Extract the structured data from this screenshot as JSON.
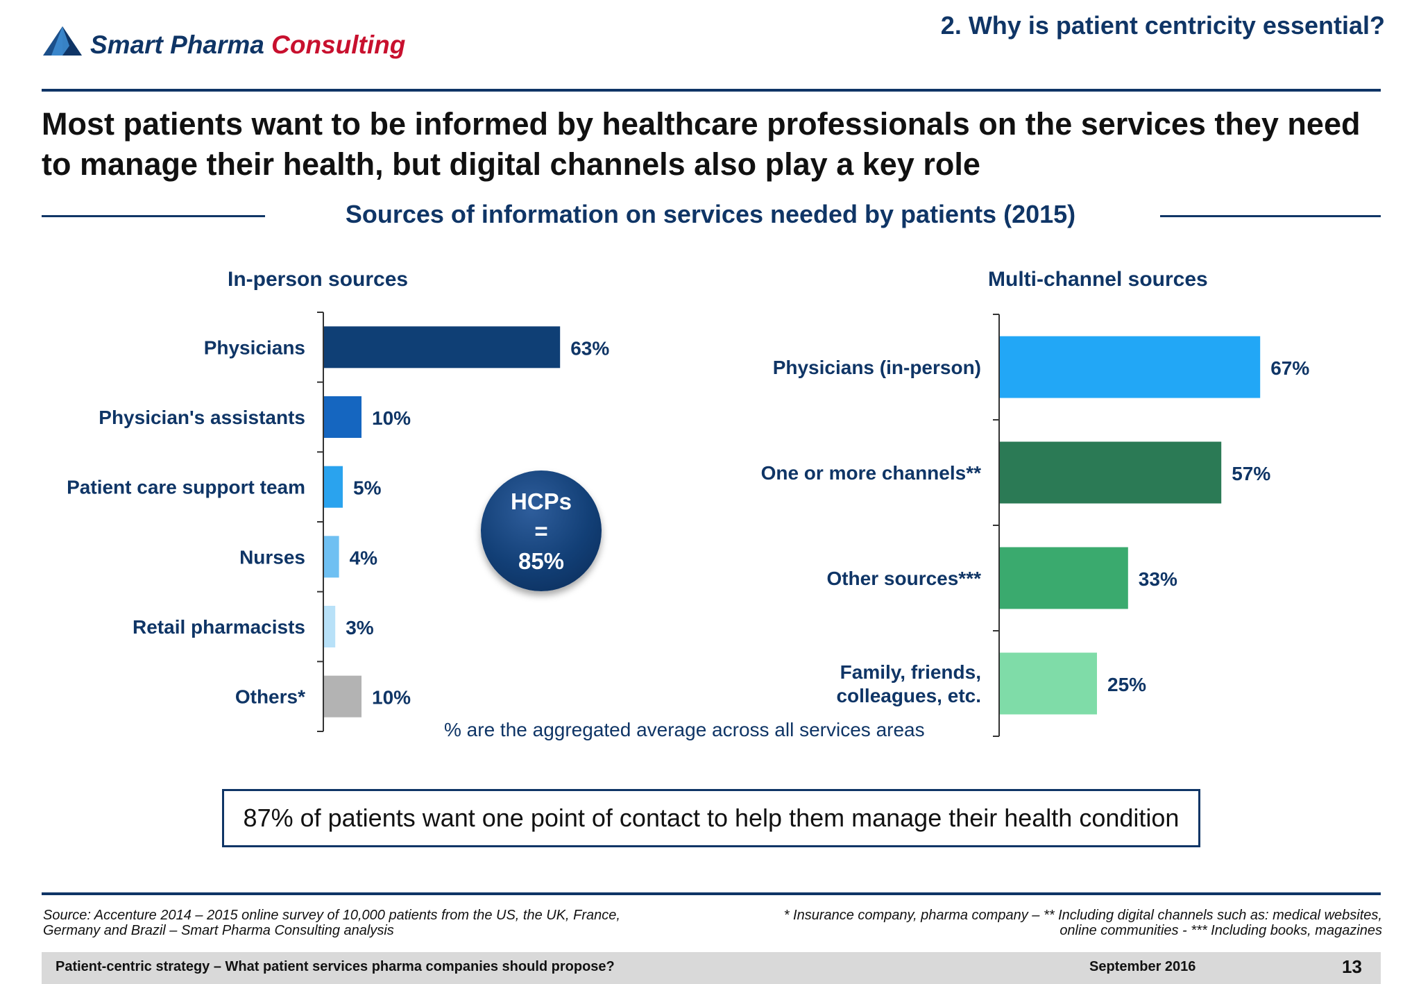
{
  "header": {
    "brand_part1": "Smart Pharma",
    "brand_part2": "Consulting",
    "logo_icon": "triangle-logo-icon",
    "section_title": "2. Why is patient centricity essential?"
  },
  "headline": "Most patients want to be informed by healthcare professionals on the services they need to manage their health, but digital channels also play a key role",
  "subtitle": "Sources of information on services needed by patients (2015)",
  "chart_data": [
    {
      "type": "bar",
      "orientation": "horizontal",
      "title": "In-person sources",
      "categories": [
        "Physicians",
        "Physician's assistants",
        "Patient care support team",
        "Nurses",
        "Retail pharmacists",
        "Others*"
      ],
      "values": [
        63,
        10,
        5,
        4,
        3,
        10
      ],
      "value_labels": [
        "63%",
        "10%",
        "5%",
        "4%",
        "3%",
        "10%"
      ],
      "colors": [
        "#0f3f75",
        "#1566c0",
        "#2aa3ee",
        "#6fc0f2",
        "#b8e1f8",
        "#b3b3b3"
      ],
      "unit": "%",
      "grid": false
    },
    {
      "type": "bar",
      "orientation": "horizontal",
      "title": "Multi-channel sources",
      "categories": [
        [
          "Physicians (in-person)"
        ],
        [
          "One or more channels**"
        ],
        [
          "Other sources***"
        ],
        [
          "Family, friends,",
          "colleagues, etc."
        ]
      ],
      "values": [
        67,
        57,
        33,
        25
      ],
      "value_labels": [
        "67%",
        "57%",
        "33%",
        "25%"
      ],
      "colors": [
        "#22a7f6",
        "#2b7a55",
        "#3aaa6e",
        "#7fdca8"
      ],
      "unit": "%",
      "grid": false
    }
  ],
  "hcp_bubble": {
    "line1": "HCPs",
    "line2": "=",
    "line3": "85%"
  },
  "note": "% are the aggregated average across all services areas",
  "callout": "87% of patients want one point of contact to help them manage their health condition",
  "footnotes": {
    "source_line1": "Source: Accenture 2014 – 2015 online survey of 10,000 patients from the US, the UK, France,",
    "source_line2": "Germany and Brazil – Smart Pharma Consulting analysis",
    "def_line1": "* Insurance company, pharma company – ** Including digital channels such as: medical websites,",
    "def_line2": "online communities - *** Including books, magazines"
  },
  "footer": {
    "title": "Patient-centric strategy – What patient services pharma companies should propose?",
    "date": "September 2016",
    "page": "13"
  }
}
